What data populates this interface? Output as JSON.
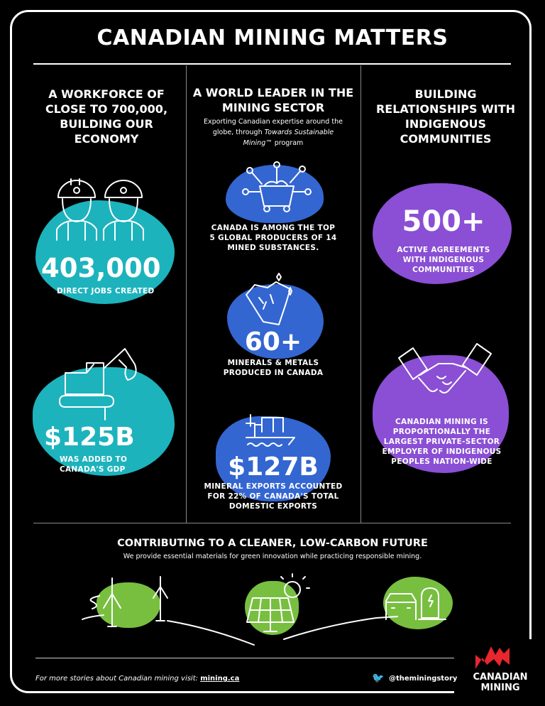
{
  "title": "CANADIAN MINING MATTERS",
  "colors": {
    "teal": "#1db3bd",
    "blue": "#3366d1",
    "purple": "#8a4fd4",
    "green": "#78bf40",
    "logo_red": "#e8262d"
  },
  "col1": {
    "heading": "A WORKFORCE OF CLOSE TO 700,000, BUILDING OUR ECONOMY",
    "stat1": {
      "value": "403,000",
      "caption": "DIRECT JOBS CREATED",
      "icon": "workers-icon"
    },
    "stat2": {
      "value": "$125B",
      "caption": "WAS ADDED TO CANADA'S GDP",
      "icon": "excavator-icon"
    }
  },
  "col2": {
    "heading": "A WORLD LEADER IN THE MINING SECTOR",
    "subtitle_1": "Exporting Canadian expertise around the globe, through ",
    "subtitle_italic": "Towards Sustainable Mining™",
    "subtitle_2": " program",
    "stat1": {
      "caption": "CANADA IS AMONG THE TOP 5 GLOBAL PRODUCERS OF 14 MINED SUBSTANCES.",
      "icon": "mine-cart-network-icon"
    },
    "stat2": {
      "value": "60+",
      "caption": "MINERALS & METALS PRODUCED IN CANADA",
      "icon": "mineral-rock-icon"
    },
    "stat3": {
      "value": "$127B",
      "caption": "MINERAL EXPORTS ACCOUNTED FOR 22% OF CANADA'S TOTAL DOMESTIC EXPORTS",
      "icon": "cargo-ship-icon"
    }
  },
  "col3": {
    "heading": "BUILDING RELATIONSHIPS WITH INDIGENOUS COMMUNITIES",
    "stat1": {
      "value": "500+",
      "caption": "ACTIVE AGREEMENTS WITH INDIGENOUS COMMUNITIES"
    },
    "stat2": {
      "caption": "CANADIAN MINING IS PROPORTIONALLY THE LARGEST PRIVATE-SECTOR EMPLOYER OF INDIGENOUS PEOPLES NATION-WIDE",
      "icon": "handshake-icon"
    }
  },
  "future": {
    "heading": "CONTRIBUTING TO A CLEANER, LOW-CARBON FUTURE",
    "subtitle": "We provide essential materials for green innovation while practicing responsible mining.",
    "icons": [
      "wind-turbine-icon",
      "solar-panel-icon",
      "ev-charger-icon"
    ]
  },
  "footer": {
    "text": "For more stories about Canadian mining visit: ",
    "link": "mining.ca",
    "twitter": "@theminingstory",
    "logo_line1": "CANADIAN",
    "logo_line2": "MINING"
  }
}
